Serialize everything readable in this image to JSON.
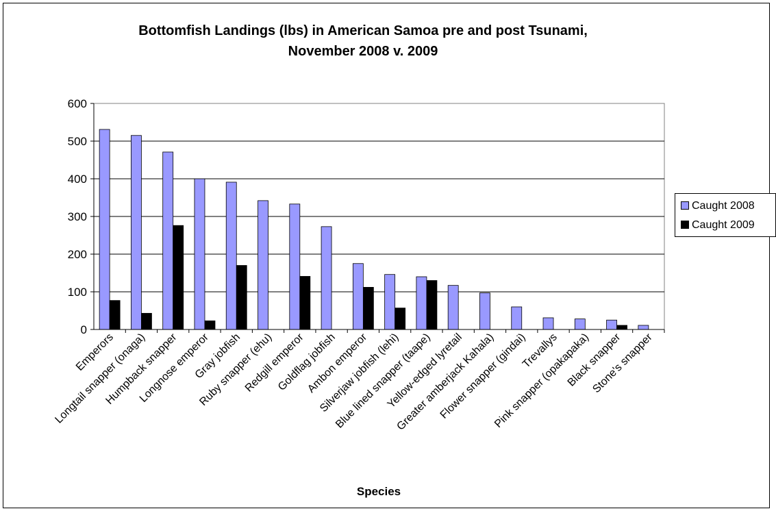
{
  "chart_data": {
    "type": "bar",
    "title": "Bottomfish Landings (lbs) in American Samoa pre and post Tsunami,\nNovember 2008 v. 2009",
    "title_lines": [
      "Bottomfish Landings (lbs) in American Samoa pre and post Tsunami,",
      "November 2008 v. 2009"
    ],
    "xlabel": "Species",
    "ylabel": "",
    "ylim": [
      0,
      600
    ],
    "yticks": [
      0,
      100,
      200,
      300,
      400,
      500,
      600
    ],
    "grid": true,
    "legend_position": "right",
    "categories": [
      "Emperors",
      "Longtail snapper (onaga)",
      "Humpback snapper",
      "Longnose emperor",
      "Gray jobfish",
      "Ruby snapper (ehu)",
      "Redgill emperor",
      "Goldflag jobfish",
      "Ambon emperor",
      "Silverjaw jobfish (lehi)",
      "Blue lined snapper (taape)",
      "Yellow-edged lyretail",
      "Greater amberjack Kahala)",
      "Flower snapper (gindai)",
      "Trevallys",
      "Pink snapper (opakapaka)",
      "Black snapper",
      "Stone's snapper"
    ],
    "series": [
      {
        "name": "Caught 2008",
        "color": "#9999ff",
        "values": [
          531,
          515,
          471,
          400,
          391,
          342,
          333,
          273,
          175,
          146,
          140,
          117,
          97,
          60,
          31,
          28,
          25,
          11
        ]
      },
      {
        "name": "Caught 2009",
        "color": "#000000",
        "values": [
          77,
          43,
          276,
          23,
          170,
          0,
          141,
          0,
          112,
          57,
          130,
          0,
          0,
          0,
          0,
          0,
          11,
          0
        ]
      }
    ]
  }
}
